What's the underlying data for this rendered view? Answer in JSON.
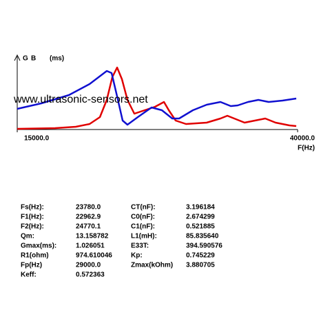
{
  "chart_data": {
    "type": "line",
    "y_unit": "(ms)",
    "xlabel": "F(Hz)",
    "xlim": [
      15000,
      40000
    ],
    "xticks": [
      {
        "value": 15000,
        "label": "15000.0"
      },
      {
        "value": 40000,
        "label": "40000.0"
      }
    ],
    "ylim": [
      0,
      100
    ],
    "series": [
      {
        "name": "G",
        "color": "#e00000",
        "x": [
          15000,
          18378,
          20221,
          21450,
          22371,
          22985,
          23477,
          23906,
          24337,
          24828,
          25442,
          26364,
          27285,
          28084,
          28514,
          29128,
          30049,
          31892,
          33120,
          33735,
          34349,
          35270,
          36499,
          37113,
          38034,
          39263,
          39877
        ],
        "values": [
          1,
          2,
          4,
          8,
          18,
          43,
          76,
          90,
          73,
          43,
          23,
          28,
          33,
          40,
          28,
          13,
          8,
          10,
          16,
          20,
          16,
          10,
          14,
          16,
          10,
          6,
          5
        ]
      },
      {
        "name": "B",
        "color": "#1010d0",
        "x": [
          15000,
          17150,
          19607,
          21450,
          22985,
          23415,
          23906,
          24398,
          24828,
          25750,
          26978,
          27899,
          28821,
          29435,
          30663,
          31892,
          33120,
          34042,
          34656,
          35577,
          36499,
          37420,
          38649,
          39877
        ],
        "values": [
          30,
          38,
          50,
          66,
          85,
          82,
          48,
          13,
          7,
          18,
          32,
          28,
          16,
          16,
          28,
          36,
          40,
          34,
          35,
          40,
          43,
          40,
          42,
          45
        ]
      }
    ]
  },
  "watermark": "www.ultrasonic-sensors.net",
  "parameters": {
    "left": [
      [
        "Fs(Hz):",
        "23780.0"
      ],
      [
        "F1(Hz):",
        "22962.9"
      ],
      [
        "F2(Hz):",
        "24770.1"
      ],
      [
        "Qm:",
        "13.158782"
      ],
      [
        "Gmax(ms):",
        "1.026051"
      ],
      [
        "R1(ohm)",
        "974.610046"
      ],
      [
        "Fp(Hz)",
        "29000.0"
      ],
      [
        "Keff:",
        "0.572363"
      ]
    ],
    "right": [
      [
        "CT(nF):",
        "3.196184"
      ],
      [
        "C0(nF):",
        "2.674299"
      ],
      [
        "C1(nF):",
        "0.521885"
      ],
      [
        "L1(mH):",
        "85.835640"
      ],
      [
        "E33T:",
        "394.590576"
      ],
      [
        "Kp:",
        "0.745229"
      ],
      [
        "Zmax(kOhm)",
        "3.880705"
      ]
    ]
  }
}
